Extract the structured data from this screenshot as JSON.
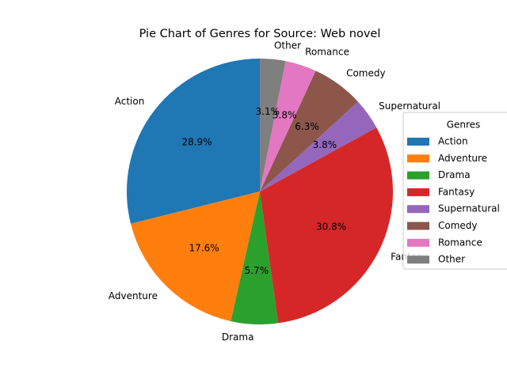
{
  "chart_data": {
    "type": "pie",
    "title": "Pie Chart of Genres for Source: Web novel",
    "start_angle_deg": 90,
    "direction": "counterclockwise",
    "slices": [
      {
        "label": "Action",
        "value": 28.9,
        "pct_label": "28.9%",
        "color": "#1f77b4"
      },
      {
        "label": "Adventure",
        "value": 17.6,
        "pct_label": "17.6%",
        "color": "#ff7f0e"
      },
      {
        "label": "Drama",
        "value": 5.7,
        "pct_label": "5.7%",
        "color": "#2ca02c"
      },
      {
        "label": "Fantasy",
        "value": 30.8,
        "pct_label": "30.8%",
        "color": "#d62728"
      },
      {
        "label": "Supernatural",
        "value": 3.8,
        "pct_label": "3.8%",
        "color": "#9467bd"
      },
      {
        "label": "Comedy",
        "value": 6.3,
        "pct_label": "6.3%",
        "color": "#8c564b"
      },
      {
        "label": "Romance",
        "value": 3.8,
        "pct_label": "3.8%",
        "color": "#e377c2"
      },
      {
        "label": "Other",
        "value": 3.1,
        "pct_label": "3.1%",
        "color": "#7f7f7f"
      }
    ],
    "legend": {
      "title": "Genres",
      "placement": "right",
      "entries": [
        "Action",
        "Adventure",
        "Drama",
        "Fantasy",
        "Supernatural",
        "Comedy",
        "Romance",
        "Other"
      ]
    }
  }
}
